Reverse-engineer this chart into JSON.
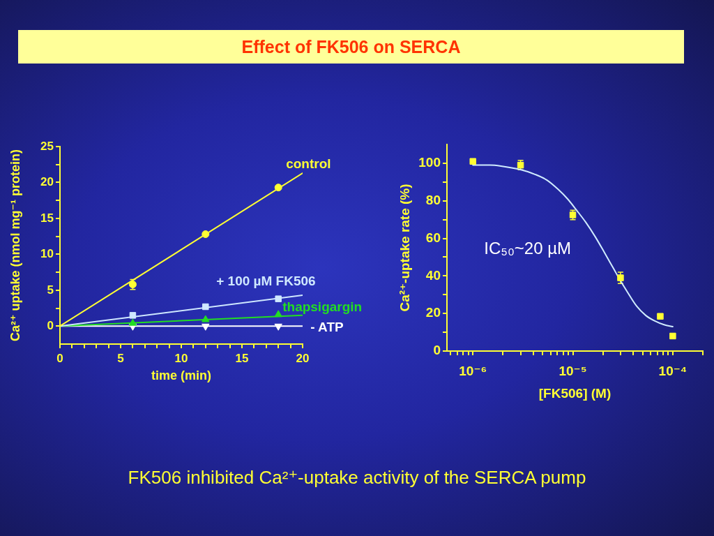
{
  "chart_data": [
    {
      "type": "scatter",
      "title": "Effect of FK506 on SERCA",
      "xlabel": "time (min)",
      "ylabel": "Ca²⁺ uptake (nmol mg⁻¹ protein)",
      "x": [
        6,
        12,
        18
      ],
      "series": [
        {
          "name": "control",
          "color": "#ffff33",
          "marker": "circle",
          "values": [
            5.8,
            12.8,
            19.3
          ],
          "errors": [
            0.7,
            null,
            null
          ]
        },
        {
          "name": "+ 100 µM FK506",
          "color": "#cfe8ff",
          "marker": "square",
          "values": [
            1.5,
            2.7,
            3.8
          ]
        },
        {
          "name": "thapsigargin",
          "color": "#22dd22",
          "marker": "triangle",
          "values": [
            0.4,
            0.9,
            1.6
          ]
        },
        {
          "name": "- ATP",
          "color": "#ffffff",
          "marker": "triangle-down",
          "values": [
            0,
            0,
            0
          ]
        },
        {
          "type": "line",
          "color": "#ffff33",
          "x": [
            0,
            20
          ],
          "values": [
            0,
            21.3
          ]
        },
        {
          "type": "line",
          "color": "#cfe8ff",
          "x": [
            0,
            20
          ],
          "values": [
            0,
            4.3
          ]
        },
        {
          "type": "line",
          "color": "#22dd22",
          "x": [
            0,
            20
          ],
          "values": [
            0,
            1.5
          ]
        },
        {
          "type": "line",
          "color": "#ffffff",
          "x": [
            0,
            20
          ],
          "values": [
            0,
            0
          ]
        }
      ],
      "xlim": [
        0,
        20
      ],
      "xticks": [
        0,
        {
          "value": 1,
          "label": null
        },
        {
          "value": 2,
          "label": null
        },
        {
          "value": 3,
          "label": null
        },
        {
          "value": 4,
          "label": null
        },
        5,
        {
          "value": 6,
          "label": null
        },
        {
          "value": 7,
          "label": null
        },
        {
          "value": 8,
          "label": null
        },
        {
          "value": 9,
          "label": null
        },
        10,
        {
          "value": 11,
          "label": null
        },
        {
          "value": 12,
          "label": null
        },
        {
          "value": 13,
          "label": null
        },
        {
          "value": 14,
          "label": null
        },
        15,
        {
          "value": 16,
          "label": null
        },
        {
          "value": 17,
          "label": null
        },
        {
          "value": 18,
          "label": null
        },
        {
          "value": 19,
          "label": null
        },
        20
      ],
      "ylim": [
        -2.5,
        25
      ],
      "yticks": [
        0,
        {
          "value": 2.5,
          "label": null
        },
        5,
        {
          "value": 7.5,
          "label": null
        },
        10,
        {
          "value": 12.5,
          "label": null
        },
        15,
        {
          "value": 17.5,
          "label": null
        },
        20,
        {
          "value": 22.5,
          "label": null
        },
        25
      ],
      "legend": false,
      "annotations": [
        "FK506 inhibited Ca²⁺-uptake activity of the SERCA pump"
      ]
    },
    {
      "type": "scatter",
      "xlabel": "[FK506] (M)",
      "ylabel": "Ca²⁺-uptake rate (%)",
      "log": "x",
      "series": [
        {
          "type": "line",
          "color": "#d0ecff",
          "x": [
            1e-06,
            1.47e-06,
            1.91e-06,
            3.03e-06,
            4.22e-06,
            5.51e-06,
            7.16e-06,
            8.86e-06,
            1.09e-05,
            1.35e-05,
            1.67e-05,
            2.07e-05,
            2.55e-05,
            2.99e-05,
            3.51e-05,
            4.34e-05,
            5.36e-05,
            6.62e-05,
            8.18e-05,
            0.0001
          ],
          "values": [
            99,
            99,
            98.5,
            96.5,
            94,
            91,
            86,
            81,
            75,
            68.5,
            61,
            52.5,
            44,
            37.5,
            31.5,
            24,
            19,
            16,
            14,
            13
          ]
        },
        {
          "color": "#ffff33",
          "marker": "square",
          "x": [
            1e-06,
            3e-06,
            1e-05,
            3e-05,
            7.5e-05,
            0.0001
          ],
          "values": [
            101,
            99,
            72.5,
            39,
            18.5,
            8
          ],
          "errors": [
            null,
            2.5,
            2.5,
            3,
            null,
            null
          ]
        }
      ],
      "xlim": [
        5.5e-07,
        0.0002
      ],
      "xticks": [
        {
          "value": 6e-07,
          "label": null
        },
        {
          "value": 7e-07,
          "label": null
        },
        {
          "value": 8e-07,
          "label": null
        },
        {
          "value": 9e-07,
          "label": null
        },
        {
          "value": 1e-06,
          "label": "10⁻⁶"
        },
        {
          "value": 2e-06,
          "label": null
        },
        {
          "value": 3e-06,
          "label": null
        },
        {
          "value": 4e-06,
          "label": null
        },
        {
          "value": 5e-06,
          "label": null
        },
        {
          "value": 6e-06,
          "label": null
        },
        {
          "value": 7e-06,
          "label": null
        },
        {
          "value": 8e-06,
          "label": null
        },
        {
          "value": 9e-06,
          "label": null
        },
        {
          "value": 1e-05,
          "label": "10⁻⁵"
        },
        {
          "value": 2e-05,
          "label": null
        },
        {
          "value": 3e-05,
          "label": null
        },
        {
          "value": 4e-05,
          "label": null
        },
        {
          "value": 5e-05,
          "label": null
        },
        {
          "value": 6e-05,
          "label": null
        },
        {
          "value": 7e-05,
          "label": null
        },
        {
          "value": 8e-05,
          "label": null
        },
        {
          "value": 9e-05,
          "label": null
        },
        {
          "value": 0.0001,
          "label": "10⁻⁴"
        },
        {
          "value": 0.0002,
          "label": null
        }
      ],
      "ylim": [
        0,
        110
      ],
      "yticks": [
        0,
        {
          "value": 10,
          "label": null
        },
        20,
        {
          "value": 30,
          "label": null
        },
        40,
        {
          "value": 50,
          "label": null
        },
        60,
        {
          "value": 70,
          "label": null
        },
        80,
        {
          "value": 90,
          "label": null
        },
        100
      ],
      "legend": false,
      "annotations": [
        "IC₅₀~20 µM"
      ]
    }
  ]
}
